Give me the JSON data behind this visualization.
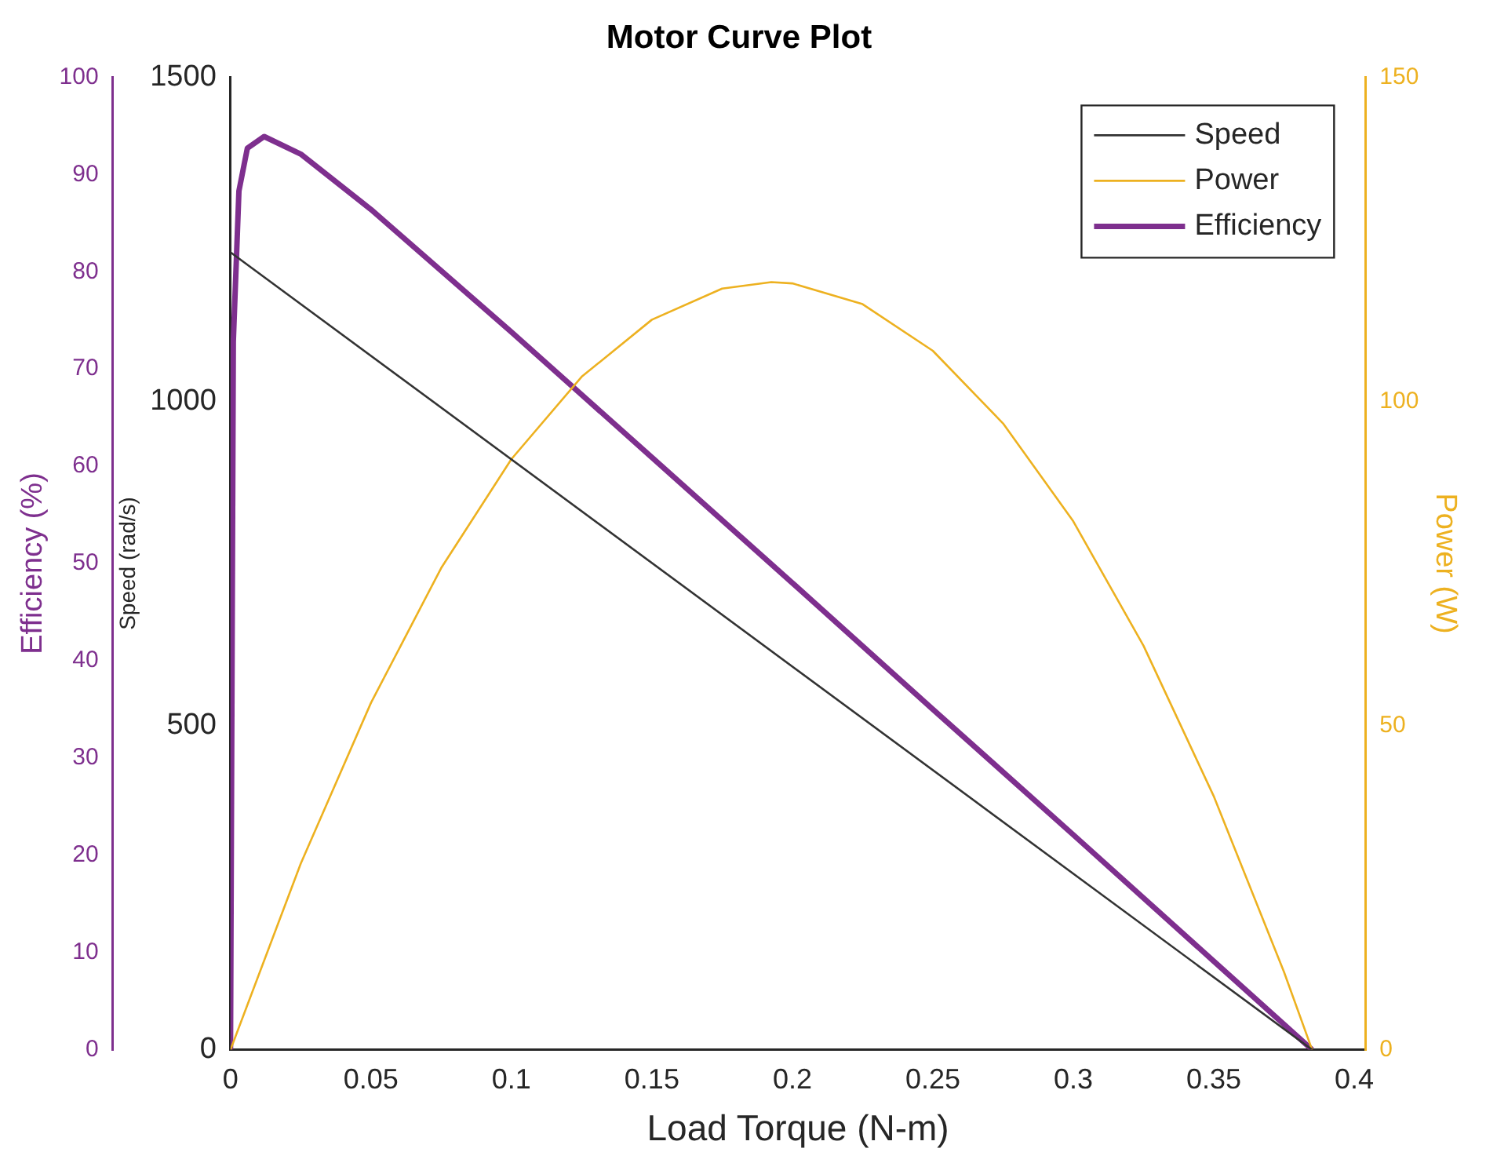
{
  "chart_data": {
    "type": "line",
    "title": "Motor Curve Plot",
    "xlabel": "Load Torque (N-m)",
    "ylabel": "Speed (rad/s)",
    "y2label": "Power (W)",
    "y3label": "Efficiency (%)",
    "xlim": [
      0,
      0.404
    ],
    "xticks": [
      0,
      0.05,
      0.1,
      0.15,
      0.2,
      0.25,
      0.3,
      0.35,
      0.4
    ],
    "ylim": [
      0,
      1500
    ],
    "yticks": [
      0,
      500,
      1000,
      1500
    ],
    "y2lim": [
      0,
      150
    ],
    "y2ticks": [
      0,
      50,
      100,
      150
    ],
    "y3lim": [
      0,
      100
    ],
    "y3ticks": [
      0,
      10,
      20,
      30,
      40,
      50,
      60,
      70,
      80,
      90,
      100
    ],
    "grid": false,
    "legend": "top right",
    "marker": "none",
    "line_style": "solid",
    "series": [
      {
        "name": "Speed",
        "color": "#333333",
        "x": [
          0,
          0.385
        ],
        "values": [
          1230,
          0
        ]
      },
      {
        "name": "Power",
        "color": "#edb120",
        "axis": "y2",
        "x": [
          0,
          0.025,
          0.05,
          0.075,
          0.1,
          0.125,
          0.15,
          0.175,
          0.1925,
          0.2,
          0.225,
          0.25,
          0.275,
          0.3,
          0.325,
          0.35,
          0.375,
          0.385
        ],
        "values": [
          0,
          28.7,
          53.5,
          74.3,
          91.1,
          103.8,
          112.6,
          117.4,
          118.4,
          118.2,
          115.0,
          107.8,
          96.6,
          81.5,
          62.3,
          39.1,
          12.0,
          0
        ]
      },
      {
        "name": "Efficiency",
        "color": "#7e2f8e",
        "axis": "y3",
        "x": [
          0,
          0.001,
          0.003,
          0.006,
          0.012,
          0.025,
          0.05,
          0.1,
          0.15,
          0.2,
          0.25,
          0.3,
          0.35,
          0.385
        ],
        "values": [
          0,
          72.8,
          88.3,
          92.7,
          93.9,
          92.1,
          86.4,
          73.8,
          60.9,
          48.0,
          35.0,
          22.1,
          9.1,
          0
        ]
      }
    ]
  }
}
